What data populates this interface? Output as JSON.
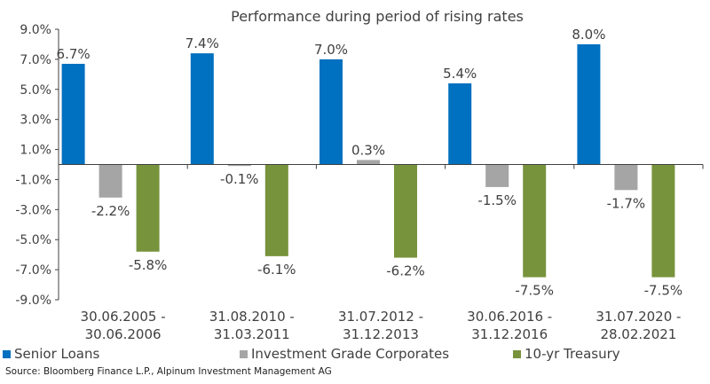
{
  "chart_data": {
    "type": "bar",
    "title": "Performance during period of rising rates",
    "categories": [
      [
        "30.06.2005 -",
        "30.06.2006"
      ],
      [
        "31.08.2010 -",
        "31.03.2011"
      ],
      [
        "31.07.2012 -",
        "31.12.2013"
      ],
      [
        "30.06.2016 -",
        "31.12.2016"
      ],
      [
        "31.07.2020 -",
        "28.02.2021"
      ]
    ],
    "series": [
      {
        "name": "Senior Loans",
        "color": "#0070C0",
        "values": [
          6.7,
          7.4,
          7.0,
          5.4,
          8.0
        ],
        "labels": [
          "6.7%",
          "7.4%",
          "7.0%",
          "5.4%",
          "8.0%"
        ]
      },
      {
        "name": "Investment Grade Corporates",
        "color": "#A5A5A5",
        "values": [
          -2.2,
          -0.1,
          0.3,
          -1.5,
          -1.7
        ],
        "labels": [
          "-2.2%",
          "-0.1%",
          "0.3%",
          "-1.5%",
          "-1.7%"
        ]
      },
      {
        "name": "10-yr Treasury",
        "color": "#77933C",
        "values": [
          -5.8,
          -6.1,
          -6.2,
          -7.5,
          -7.5
        ],
        "labels": [
          "-5.8%",
          "-6.1%",
          "-6.2%",
          "-7.5%",
          "-7.5%"
        ]
      }
    ],
    "yticks": [
      9.0,
      7.0,
      5.0,
      3.0,
      1.0,
      -1.0,
      -3.0,
      -5.0,
      -7.0,
      -9.0
    ],
    "ytick_labels": [
      "9.0%",
      "7.0%",
      "5.0%",
      "3.0%",
      "1.0%",
      "-1.0%",
      "-3.0%",
      "-5.0%",
      "-7.0%",
      "-9.0%"
    ],
    "ylim": [
      -9.0,
      9.0
    ],
    "xlabel": "",
    "ylabel": "",
    "legend_position": "bottom"
  },
  "source": "Source: Bloomberg Finance L.P., Alpinum Investment Management AG"
}
